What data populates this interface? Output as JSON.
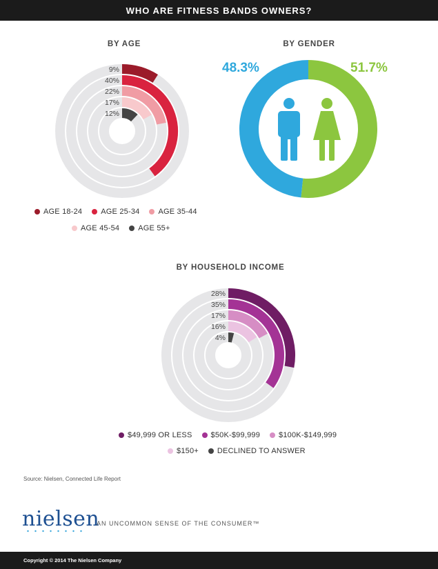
{
  "header": {
    "title": "WHO ARE FITNESS BANDS OWNERS?"
  },
  "colors": {
    "track": "#e6e6e8",
    "age": [
      "#9b1b2a",
      "#d9233f",
      "#f09ca4",
      "#f8c9cc",
      "#444444"
    ],
    "income": [
      "#6f1d64",
      "#a43395",
      "#d68dc4",
      "#ebc3e1",
      "#444444"
    ],
    "male": "#2fa8dd",
    "female": "#8cc63f"
  },
  "chart_data": [
    {
      "type": "radial-bar",
      "title": "BY AGE",
      "categories": [
        "AGE 18-24",
        "AGE 25-34",
        "AGE 35-44",
        "AGE 45-54",
        "AGE 55+"
      ],
      "values": [
        9,
        40,
        22,
        17,
        12
      ],
      "labels": [
        "9%",
        "40%",
        "22%",
        "17%",
        "12%"
      ],
      "legend_rows": [
        [
          "AGE 18-24",
          "AGE 25-34",
          "AGE 35-44"
        ],
        [
          "AGE 45-54",
          "AGE 55+"
        ]
      ]
    },
    {
      "type": "pie",
      "title": "BY GENDER",
      "categories": [
        "Male",
        "Female"
      ],
      "values": [
        48.3,
        51.7
      ],
      "labels": [
        "48.3%",
        "51.7%"
      ]
    },
    {
      "type": "radial-bar",
      "title": "BY HOUSEHOLD INCOME",
      "categories": [
        "$49,999 OR LESS",
        "$50K-$99,999",
        "$100K-$149,999",
        "$150+",
        "DECLINED TO ANSWER"
      ],
      "values": [
        28,
        35,
        17,
        16,
        4
      ],
      "labels": [
        "28%",
        "35%",
        "17%",
        "16%",
        "4%"
      ],
      "legend_rows": [
        [
          "$49,999 OR LESS",
          "$50K-$99,999",
          "$100K-$149,999"
        ],
        [
          "$150+",
          "DECLINED TO ANSWER"
        ]
      ]
    }
  ],
  "footer": {
    "source": "Source: Nielsen, Connected Life Report",
    "logo": "nielsen",
    "tagline": "AN UNCOMMON SENSE OF THE CONSUMER™",
    "copyright": "Copyright © 2014 The Nielsen Company"
  }
}
